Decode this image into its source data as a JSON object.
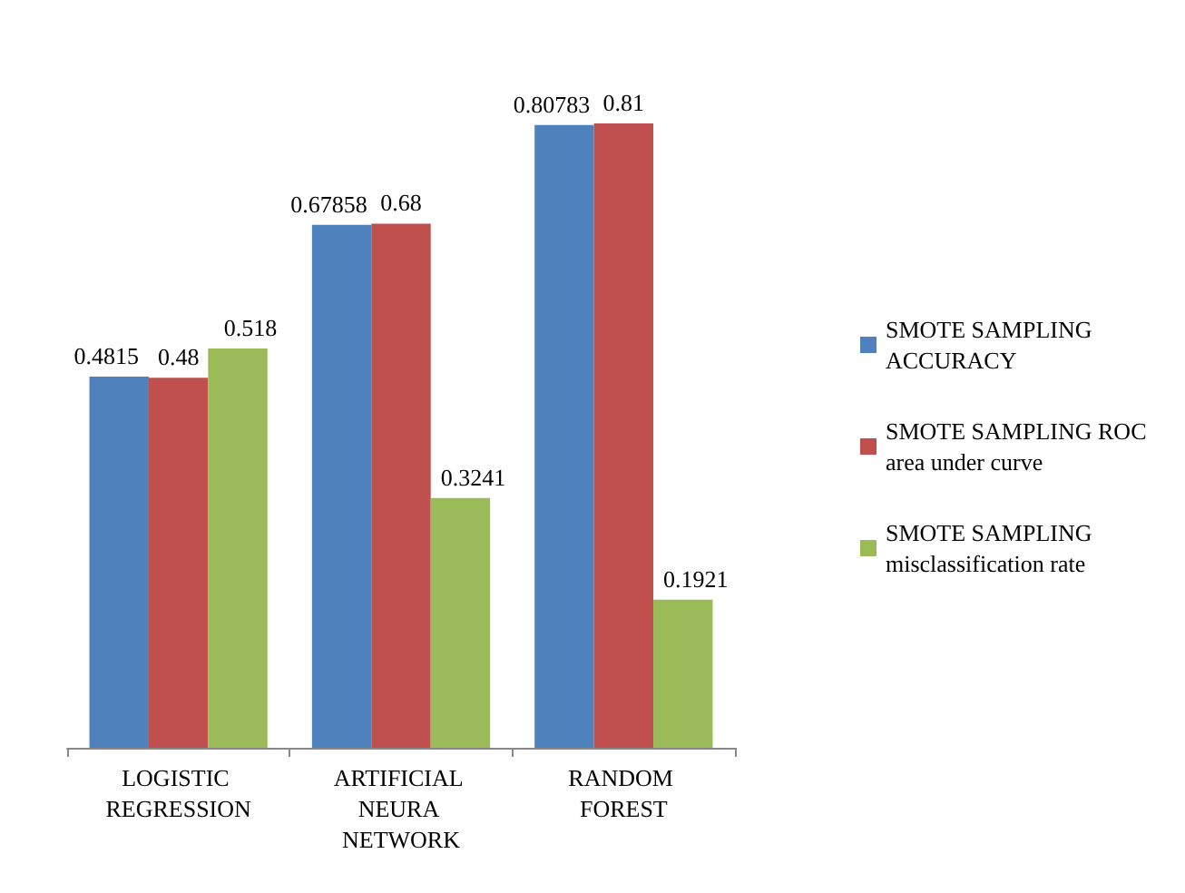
{
  "chart_data": {
    "type": "bar",
    "categories": [
      "LOGISTIC REGRESSION",
      "ARTIFICIAL NEURA NETWORK",
      "RANDOM FOREST"
    ],
    "series": [
      {
        "name": "SMOTE SAMPLING ACCURACY",
        "color": "#4f81bd",
        "values": [
          0.4815,
          0.67858,
          0.80783
        ]
      },
      {
        "name": "SMOTE SAMPLING ROC area under curve",
        "color": "#c0504d",
        "values": [
          0.48,
          0.68,
          0.81
        ]
      },
      {
        "name": "SMOTE SAMPLING misclassification rate",
        "color": "#9bbb59",
        "values": [
          0.518,
          0.3241,
          0.1921
        ]
      }
    ],
    "data_labels": true,
    "legend": "right"
  }
}
